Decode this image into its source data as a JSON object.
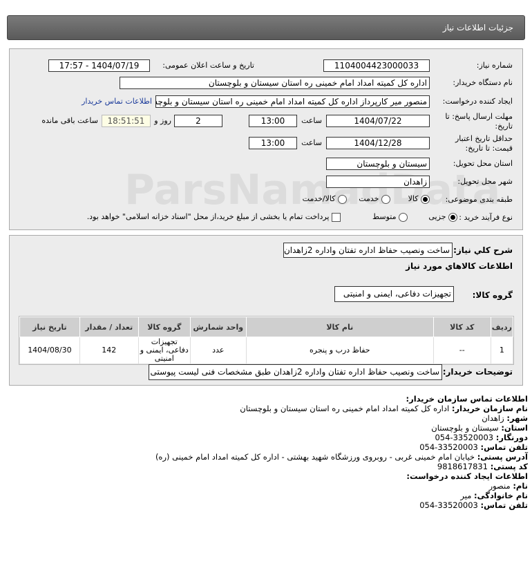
{
  "header": {
    "title": "جزئیات اطلاعات نیاز"
  },
  "form": {
    "need_number_label": "شماره نیاز:",
    "need_number": "1104004423000033",
    "announce_label": "تاریخ و ساعت اعلان عمومی:",
    "announce_value": "1404/07/19 - 17:57",
    "buyer_org_label": "نام دستگاه خریدار:",
    "buyer_org": "اداره کل کمیته امداد امام خمینی  ره  استان سیستان و بلوچستان",
    "creator_label": "ایجاد کننده درخواست:",
    "creator": "منصور میر کارپرداز اداره کل کمیته امداد امام خمینی  ره  استان سیستان و بلوچستان",
    "contact_link": "اطلاعات تماس خریدار",
    "deadline_label_1": "مهلت ارسال پاسخ: تا",
    "deadline_label_2": "تاریخ:",
    "deadline_date": "1404/07/22",
    "time_label": "ساعت",
    "deadline_time": "13:00",
    "days": "2",
    "days_label": "روز و",
    "remaining": "18:51:51",
    "remaining_label": "ساعت باقی مانده",
    "validity_label_1": "حداقل تاریخ اعتبار",
    "validity_label_2": "قیمت: تا تاریخ:",
    "validity_date": "1404/12/28",
    "validity_time": "13:00",
    "province_label": "استان محل تحویل:",
    "province": "سیستان و بلوچستان",
    "city_label": "شهر محل تحویل:",
    "city": "زاهدان",
    "category_label": "طبقه بندی موضوعی:",
    "cat_goods": "کالا",
    "cat_service": "خدمت",
    "cat_both": "کالا/خدمت",
    "category_selected": "کالا",
    "process_label": "نوع فرآیند خرید :",
    "proc_partial": "جزیی",
    "proc_medium": "متوسط",
    "process_selected": "جزیی",
    "payment_note": "پرداخت تمام یا بخشی از مبلغ خرید،از محل \"اسناد خزانه اسلامی\" خواهد بود."
  },
  "details": {
    "summary_label": "شرح کلي نياز:",
    "summary": "ساخت ونصیب حفاظ اداره تفتان واداره 2زاهدان",
    "goods_title": "اطلاعات کالاهاي مورد نياز",
    "group_label": "گروه کالا:",
    "group": "تجهیزات دفاعی، ایمنی و امنیتی",
    "columns": [
      "ردیف",
      "کد کالا",
      "نام کالا",
      "واحد شمارش",
      "گروه کالا",
      "تعداد / مقدار",
      "تاریخ نیاز"
    ],
    "rows": [
      [
        "1",
        "--",
        "حفاظ درب و پنجره",
        "عدد",
        "تجهیزات دفاعی، ایمنی و امنیتی",
        "142",
        "1404/08/30"
      ]
    ],
    "buyer_notes_label": "توضیحات خریدار:",
    "buyer_notes": "ساخت ونصیب حفاظ اداره تفتان واداره 2زاهدان طبق مشخصات فنی لیست پیوستی"
  },
  "contact": {
    "title": "اطلاعات تماس سازمان خریدار:",
    "lines": [
      {
        "k": "نام سازمان خریدار:",
        "v": "اداره کل کمیته امداد امام خمینی ره استان سیستان و بلوچستان"
      },
      {
        "k": "شهر:",
        "v": "زاهدان"
      },
      {
        "k": "استان:",
        "v": "سیستان و بلوچستان"
      },
      {
        "k": "دورنگار:",
        "v": "33520003-054"
      },
      {
        "k": "تلفن تماس:",
        "v": "33520003-054"
      },
      {
        "k": "آدرس پستی:",
        "v": "خیابان امام خمینی غربی - روبروی ورزشگاه شهید بهشتی - اداره کل کمیته امداد امام خمینی (ره)"
      },
      {
        "k": "کد پستی:",
        "v": "9818617831"
      }
    ],
    "creator_title": "اطلاعات ایجاد کننده درخواست:",
    "creator_lines": [
      {
        "k": "نام:",
        "v": "منصور"
      },
      {
        "k": "نام خانوادگی:",
        "v": "میر"
      },
      {
        "k": "تلفن تماس:",
        "v": "33520003-054"
      }
    ]
  },
  "watermark": "ParsNamadData"
}
